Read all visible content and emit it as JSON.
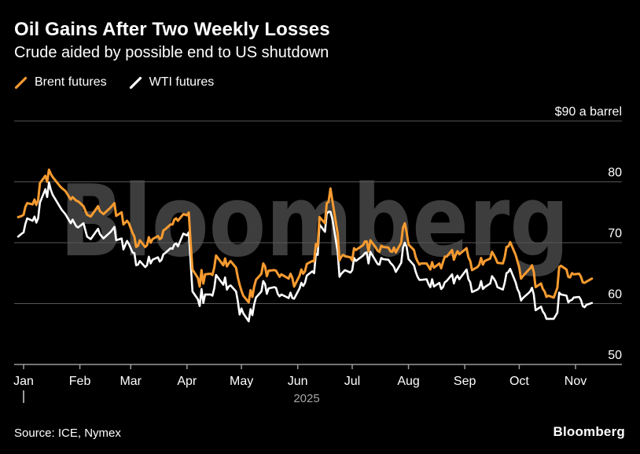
{
  "header": {
    "title": "Oil Gains After Two Weekly Losses",
    "subtitle": "Crude aided by possible end to US shutdown"
  },
  "legend": [
    {
      "label": "Brent futures",
      "color": "#F79B30"
    },
    {
      "label": "WTI futures",
      "color": "#FFFFFF"
    }
  ],
  "watermark": "Bloomberg",
  "footer": {
    "source": "Source: ICE, Nymex",
    "logo": "Bloomberg"
  },
  "colors": {
    "background": "#000000",
    "brent": "#F79B30",
    "wti": "#FFFFFF",
    "gridline": "#565656",
    "axis": "#9B9B9B",
    "watermark": "#3D3D3D",
    "year_text": "#A6A6A6"
  },
  "chart_data": {
    "type": "line",
    "title": "Oil Gains After Two Weekly Losses",
    "subtitle": "Crude aided by possible end to US shutdown",
    "xlabel": "",
    "ylabel": "$ a barrel",
    "unit_label": "$90 a barrel",
    "ylim": [
      50,
      90
    ],
    "yticks": [
      90,
      80,
      70,
      60,
      50
    ],
    "grid": true,
    "legend_position": "top-left",
    "year_label": "2025",
    "x_unit": "days from Jan 1 2025 (negative = late Dec 2024)",
    "x_tick_days": [
      0,
      31,
      59,
      90,
      120,
      151,
      181,
      212,
      243,
      273,
      304
    ],
    "xticklabels": [
      "Jan",
      "Feb",
      "Mar",
      "Apr",
      "May",
      "Jun",
      "Jul",
      "Aug",
      "Sep",
      "Oct",
      "Nov"
    ],
    "x_days": [
      -3,
      -1,
      0,
      1,
      2,
      5,
      6,
      7,
      8,
      9,
      12,
      13,
      14,
      15,
      16,
      20,
      21,
      23,
      26,
      27,
      29,
      30,
      33,
      35,
      37,
      41,
      42,
      44,
      48,
      50,
      51,
      54,
      55,
      57,
      58,
      60,
      61,
      62,
      63,
      64,
      67,
      68,
      69,
      70,
      71,
      74,
      75,
      76,
      77,
      78,
      81,
      82,
      83,
      84,
      85,
      88,
      90,
      91,
      92,
      93,
      96,
      97,
      98,
      99,
      100,
      103,
      104,
      105,
      106,
      110,
      111,
      112,
      113,
      114,
      117,
      118,
      119,
      120,
      121,
      124,
      125,
      126,
      127,
      128,
      131,
      132,
      133,
      134,
      135,
      138,
      139,
      140,
      141,
      142,
      146,
      147,
      148,
      149,
      152,
      153,
      154,
      155,
      156,
      159,
      160,
      161,
      162,
      163,
      166,
      167,
      168,
      169,
      170,
      173,
      174,
      175,
      176,
      177,
      180,
      181,
      182,
      183,
      187,
      188,
      189,
      190,
      191,
      194,
      195,
      196,
      197,
      198,
      201,
      202,
      203,
      204,
      205,
      208,
      209,
      210,
      211,
      212,
      215,
      216,
      217,
      218,
      219,
      222,
      223,
      224,
      225,
      226,
      229,
      230,
      231,
      232,
      233,
      236,
      237,
      238,
      239,
      240,
      244,
      245,
      246,
      247,
      250,
      251,
      252,
      253,
      254,
      257,
      258,
      259,
      260,
      261,
      264,
      265,
      266,
      267,
      268,
      271,
      272,
      273,
      274,
      275,
      278,
      279,
      280,
      281,
      282,
      285,
      286,
      287,
      288,
      289,
      292,
      294,
      295,
      296,
      299,
      300,
      301,
      302,
      303,
      306,
      307,
      308,
      309,
      310,
      313
    ],
    "series": [
      {
        "name": "Brent futures",
        "color": "#F79B30",
        "values": [
          74.2,
          74.4,
          74.6,
          75.9,
          76.5,
          76.3,
          77.1,
          76.2,
          77.0,
          79.8,
          81.0,
          80.0,
          82.0,
          81.3,
          80.8,
          79.3,
          79.0,
          78.5,
          77.1,
          77.5,
          76.9,
          76.8,
          76.0,
          74.6,
          74.3,
          76.0,
          75.2,
          74.7,
          75.8,
          76.5,
          74.4,
          75.0,
          73.0,
          73.6,
          73.2,
          71.6,
          71.0,
          69.3,
          69.5,
          70.4,
          69.3,
          69.6,
          70.9,
          70.0,
          70.6,
          71.1,
          70.6,
          70.8,
          72.0,
          72.2,
          73.0,
          73.0,
          73.8,
          74.0,
          73.6,
          74.7,
          74.5,
          74.95,
          70.1,
          65.6,
          64.2,
          62.8,
          65.5,
          63.3,
          64.8,
          64.9,
          64.7,
          65.9,
          67.9,
          66.3,
          67.4,
          66.1,
          66.6,
          67.0,
          65.9,
          64.3,
          63.1,
          62.1,
          61.3,
          60.2,
          62.2,
          61.1,
          62.8,
          63.9,
          64.9,
          66.6,
          66.1,
          64.5,
          65.4,
          65.5,
          65.4,
          64.9,
          64.4,
          64.8,
          64.1,
          64.9,
          64.2,
          62.8,
          64.6,
          65.6,
          64.9,
          65.3,
          66.5,
          67.0,
          66.9,
          69.8,
          69.4,
          74.2,
          73.2,
          76.5,
          76.7,
          78.9,
          77.0,
          71.5,
          67.1,
          67.7,
          68.0,
          67.8,
          67.6,
          67.1,
          69.1,
          68.8,
          69.6,
          70.2,
          70.2,
          68.6,
          70.4,
          69.2,
          68.7,
          68.5,
          69.5,
          69.3,
          69.2,
          68.6,
          68.5,
          69.2,
          68.4,
          70.0,
          72.5,
          73.2,
          71.7,
          69.7,
          68.8,
          67.6,
          66.9,
          66.4,
          66.6,
          66.6,
          66.1,
          65.6,
          66.8,
          65.9,
          66.6,
          65.8,
          66.8,
          67.7,
          67.7,
          68.8,
          67.2,
          68.0,
          68.6,
          68.1,
          69.1,
          67.6,
          67.0,
          65.5,
          66.0,
          66.4,
          67.5,
          66.4,
          67.0,
          67.4,
          68.5,
          68.0,
          67.4,
          66.7,
          66.6,
          67.6,
          69.3,
          69.4,
          70.1,
          68.0,
          67.0,
          65.9,
          64.1,
          64.5,
          65.5,
          65.8,
          66.3,
          65.2,
          62.7,
          63.3,
          62.4,
          62.0,
          61.1,
          61.3,
          61.0,
          62.6,
          66.0,
          66.2,
          65.6,
          64.4,
          64.3,
          65.0,
          64.8,
          64.9,
          64.4,
          63.5,
          63.4,
          63.6,
          64.1
        ]
      },
      {
        "name": "WTI futures",
        "color": "#FFFFFF",
        "values": [
          71.0,
          71.5,
          71.7,
          73.1,
          74.0,
          73.6,
          74.3,
          73.3,
          74.0,
          76.6,
          78.8,
          77.5,
          79.9,
          78.7,
          77.9,
          75.9,
          75.4,
          74.7,
          73.2,
          73.8,
          72.7,
          72.5,
          73.2,
          71.0,
          70.6,
          72.3,
          71.4,
          70.7,
          71.8,
          72.6,
          70.4,
          70.7,
          68.9,
          70.3,
          69.8,
          68.4,
          68.3,
          66.3,
          66.4,
          67.0,
          66.0,
          66.3,
          67.7,
          66.6,
          67.2,
          67.6,
          66.9,
          67.2,
          68.1,
          68.3,
          69.1,
          69.0,
          69.7,
          69.9,
          69.4,
          71.5,
          71.2,
          71.7,
          66.9,
          62.0,
          60.7,
          59.6,
          62.4,
          60.1,
          61.5,
          61.5,
          61.3,
          62.5,
          64.7,
          63.1,
          64.3,
          62.3,
          62.8,
          63.0,
          62.0,
          60.4,
          58.2,
          59.2,
          58.4,
          57.1,
          59.1,
          58.1,
          59.9,
          61.0,
          62.0,
          63.7,
          63.2,
          61.6,
          62.5,
          62.7,
          62.6,
          61.6,
          61.2,
          61.5,
          60.9,
          61.8,
          60.9,
          60.8,
          62.5,
          63.4,
          62.9,
          63.4,
          64.6,
          65.3,
          65.0,
          68.2,
          68.0,
          73.0,
          71.8,
          74.8,
          75.1,
          75.1,
          74.0,
          68.5,
          64.4,
          64.9,
          65.2,
          65.5,
          65.1,
          65.5,
          67.5,
          67.0,
          67.9,
          68.3,
          68.4,
          66.6,
          68.5,
          67.0,
          66.5,
          66.4,
          67.5,
          67.3,
          67.2,
          66.7,
          66.4,
          66.0,
          65.2,
          66.7,
          69.2,
          70.0,
          69.3,
          67.3,
          66.3,
          65.2,
          64.4,
          63.9,
          63.9,
          64.0,
          63.2,
          62.7,
          64.0,
          62.8,
          63.4,
          62.4,
          62.7,
          63.5,
          63.7,
          64.8,
          63.3,
          64.2,
          64.6,
          64.0,
          65.6,
          64.0,
          63.5,
          61.9,
          62.3,
          62.6,
          63.7,
          62.4,
          62.7,
          63.3,
          64.5,
          64.1,
          63.6,
          62.7,
          62.3,
          63.4,
          65.0,
          65.2,
          65.7,
          63.5,
          62.4,
          61.8,
          60.5,
          60.9,
          61.7,
          62.0,
          62.6,
          61.5,
          58.9,
          59.5,
          58.7,
          58.3,
          57.5,
          57.5,
          57.5,
          58.5,
          61.8,
          61.5,
          61.3,
          60.2,
          60.5,
          60.6,
          61.0,
          61.1,
          60.6,
          59.6,
          59.4,
          59.8,
          60.1
        ]
      }
    ]
  }
}
